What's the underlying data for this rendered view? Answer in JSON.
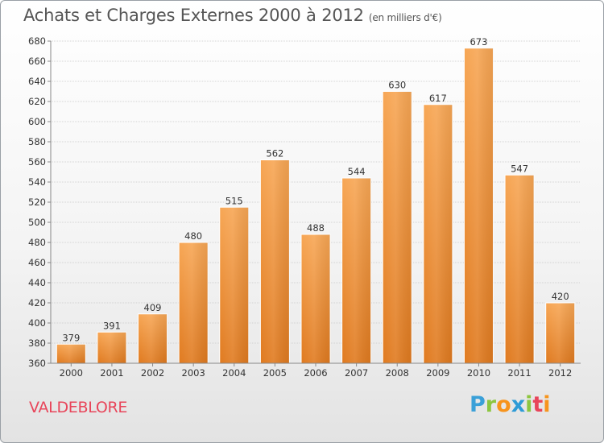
{
  "title": "Achats et Charges Externes 2000 à 2012",
  "unit_note": "(en milliers d'€)",
  "place": "VALDEBLORE",
  "brand": {
    "letters": [
      "P",
      "r",
      "o",
      "x",
      "i",
      "t",
      "i"
    ],
    "colors": [
      "#3aa0d8",
      "#8cc63f",
      "#f7941d",
      "#2e9bd6",
      "#8cc63f",
      "#e8455a",
      "#f7941d"
    ]
  },
  "colors": {
    "bar_top": "#f7a654",
    "bar_bottom": "#e07a1f",
    "grid": "#c8c8c8",
    "axis_text": "#333333",
    "title": "#555555",
    "place": "#e8455a"
  },
  "chart_data": {
    "type": "bar",
    "title": "Achats et Charges Externes 2000 à 2012",
    "subtitle": "(en milliers d'€)",
    "xlabel": "",
    "ylabel": "",
    "categories": [
      "2000",
      "2001",
      "2002",
      "2003",
      "2004",
      "2005",
      "2006",
      "2007",
      "2008",
      "2009",
      "2010",
      "2011",
      "2012"
    ],
    "values": [
      379,
      391,
      409,
      480,
      515,
      562,
      488,
      544,
      630,
      617,
      673,
      547,
      420
    ],
    "ylim": [
      360,
      680
    ],
    "yticks": [
      360,
      380,
      400,
      420,
      440,
      460,
      480,
      500,
      520,
      540,
      560,
      580,
      600,
      620,
      640,
      660,
      680
    ],
    "grid": true,
    "legend": "none"
  }
}
